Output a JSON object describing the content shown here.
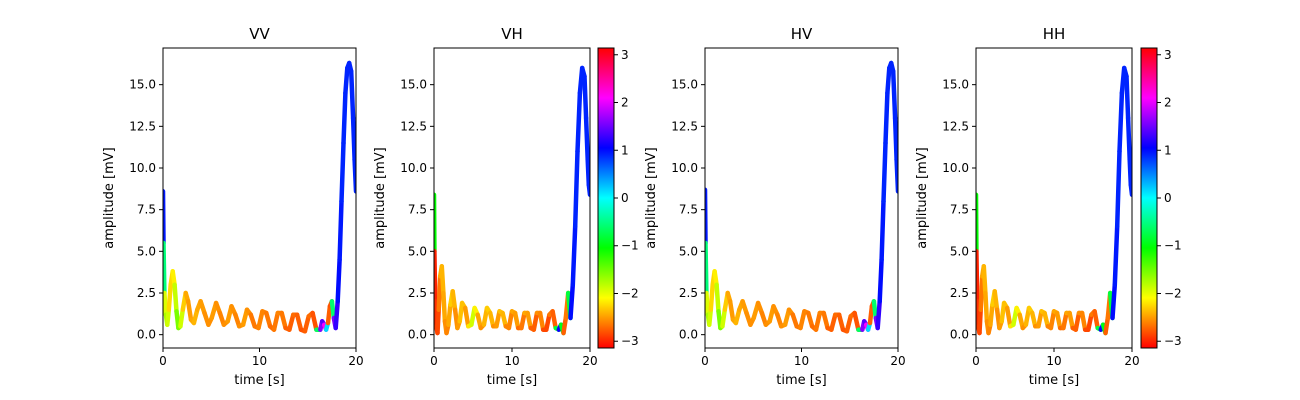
{
  "chart_data": [
    {
      "type": "line",
      "title": "VV",
      "xlabel": "time [s]",
      "ylabel": "amplitude [mV]",
      "xlim": [
        0,
        20
      ],
      "ylim": [
        -0.8,
        17.2
      ],
      "xticks": [
        "0",
        "10",
        "20"
      ],
      "yticks": [
        "0.0",
        "2.5",
        "5.0",
        "7.5",
        "10.0",
        "12.5",
        "15.0"
      ],
      "colorbar": false,
      "series": [
        {
          "x": [
            0.0,
            0.05,
            0.15,
            0.3,
            0.45,
            0.6,
            0.8,
            1.0,
            1.2,
            1.4,
            1.6,
            1.8,
            2.05,
            2.35,
            2.6,
            2.9,
            3.2,
            3.55,
            3.9,
            4.3,
            4.7,
            5.05,
            5.5,
            5.9,
            6.3,
            6.7,
            7.1,
            7.5,
            7.9,
            8.3,
            8.7,
            9.1,
            9.5,
            9.9,
            10.3,
            10.7,
            11.1,
            11.5,
            11.9,
            12.3,
            12.7,
            13.1,
            13.5,
            13.9,
            14.3,
            14.7,
            15.1,
            15.5,
            15.9,
            16.3,
            16.5,
            16.7,
            16.9,
            17.1,
            17.3,
            17.5,
            17.7,
            17.9,
            18.1,
            18.3,
            18.5,
            18.7,
            18.9,
            19.1,
            19.3,
            19.5,
            19.7,
            19.85,
            20.0
          ],
          "y": [
            8.6,
            5.5,
            2.5,
            1.2,
            0.6,
            1.5,
            3.0,
            3.8,
            3.0,
            1.4,
            0.4,
            0.5,
            1.5,
            2.5,
            2.0,
            0.9,
            0.7,
            1.5,
            2.0,
            1.3,
            0.6,
            1.0,
            1.9,
            1.3,
            0.6,
            0.8,
            1.7,
            1.2,
            0.5,
            0.6,
            1.5,
            1.2,
            0.5,
            0.4,
            1.4,
            1.3,
            0.5,
            0.3,
            1.3,
            1.3,
            0.4,
            0.3,
            1.2,
            1.2,
            0.3,
            0.2,
            1.1,
            1.3,
            0.3,
            0.3,
            0.8,
            0.6,
            0.3,
            0.7,
            1.7,
            2.0,
            1.0,
            0.4,
            2.0,
            4.5,
            8.0,
            11.5,
            14.5,
            16.0,
            16.3,
            15.8,
            13.0,
            10.5,
            8.6
          ],
          "phase": [
            1.0,
            0.9,
            -2.0,
            -1.9,
            -1.6,
            -2.2,
            -2.3,
            -2.2,
            -2.1,
            -1.6,
            -1.5,
            -1.6,
            -2.2,
            -2.4,
            -2.5,
            -2.5,
            -2.4,
            -2.4,
            -2.5,
            -2.5,
            -2.6,
            -2.5,
            -2.5,
            -2.6,
            -2.6,
            -2.5,
            -2.5,
            -2.6,
            -2.6,
            -2.5,
            -2.5,
            -2.6,
            -2.7,
            -2.6,
            -2.6,
            -2.6,
            -2.7,
            -2.7,
            -2.6,
            -2.6,
            -2.7,
            -2.8,
            -2.7,
            -2.7,
            -2.8,
            -2.8,
            -2.7,
            -2.7,
            -2.9,
            1.6,
            1.6,
            1.2,
            3.0,
            -2.7,
            -2.8,
            -2.8,
            1.6,
            1.5,
            1.0,
            1.0,
            0.9,
            0.9,
            0.9,
            0.9,
            0.9,
            0.9,
            0.9,
            0.9,
            0.9
          ]
        }
      ]
    },
    {
      "type": "line",
      "title": "VH",
      "xlabel": "time [s]",
      "ylabel": "amplitude [mV]",
      "xlim": [
        0,
        20
      ],
      "ylim": [
        -0.8,
        17.2
      ],
      "xticks": [
        "0",
        "10",
        "20"
      ],
      "yticks": [
        "0.0",
        "2.5",
        "5.0",
        "7.5",
        "10.0",
        "12.5",
        "15.0"
      ],
      "colorbar": true,
      "series": [
        {
          "x": [
            0.0,
            0.05,
            0.15,
            0.3,
            0.45,
            0.6,
            0.8,
            1.0,
            1.2,
            1.4,
            1.6,
            1.85,
            2.1,
            2.4,
            2.7,
            3.0,
            3.3,
            3.6,
            4.0,
            4.4,
            4.8,
            5.2,
            5.6,
            6.0,
            6.4,
            6.8,
            7.2,
            7.6,
            8.0,
            8.4,
            8.8,
            9.2,
            9.6,
            10.0,
            10.4,
            10.8,
            11.2,
            11.6,
            12.0,
            12.4,
            12.8,
            13.2,
            13.6,
            14.0,
            14.4,
            14.8,
            15.2,
            15.6,
            16.0,
            16.3,
            16.6,
            16.9,
            17.2,
            17.5,
            17.8,
            18.1,
            18.4,
            18.7,
            19.0,
            19.3,
            19.5,
            19.7,
            19.85,
            20.0
          ],
          "y": [
            8.4,
            5.0,
            2.0,
            0.5,
            0.1,
            1.5,
            3.5,
            4.1,
            2.5,
            0.8,
            0.1,
            0.6,
            1.8,
            2.6,
            1.5,
            0.4,
            0.8,
            1.9,
            1.6,
            0.5,
            0.6,
            1.6,
            1.2,
            0.4,
            0.6,
            1.6,
            1.3,
            0.5,
            0.5,
            1.4,
            1.3,
            0.5,
            0.4,
            1.4,
            1.3,
            0.4,
            0.4,
            1.3,
            1.3,
            0.4,
            0.3,
            1.3,
            1.3,
            0.3,
            0.3,
            1.2,
            1.4,
            0.4,
            0.3,
            0.6,
            0.1,
            1.0,
            2.5,
            1.0,
            3.0,
            6.5,
            11.0,
            14.5,
            16.0,
            15.5,
            13.0,
            10.5,
            9.0,
            8.4
          ],
          "phase": [
            0.9,
            -3.0,
            -3.0,
            -2.9,
            -2.9,
            -2.8,
            -2.5,
            -2.4,
            -2.4,
            -2.5,
            -2.6,
            -2.6,
            -2.3,
            -2.3,
            -2.5,
            -2.6,
            -2.4,
            -2.3,
            -2.4,
            -2.6,
            -1.8,
            -2.0,
            -2.3,
            -2.6,
            -2.5,
            -2.3,
            -2.3,
            -2.5,
            -2.6,
            -2.4,
            -2.3,
            -2.5,
            -2.7,
            -2.5,
            -2.4,
            -2.6,
            -2.8,
            -2.5,
            -2.4,
            -2.6,
            -2.9,
            -2.6,
            -2.5,
            -2.7,
            -3.0,
            -2.7,
            -2.6,
            -2.9,
            1.3,
            0.9,
            -2.8,
            -2.7,
            -2.6,
            1.0,
            1.0,
            0.9,
            0.9,
            0.9,
            0.9,
            0.9,
            0.9,
            0.9,
            0.9,
            0.9
          ]
        }
      ]
    },
    {
      "type": "line",
      "title": "HV",
      "xlabel": "time [s]",
      "ylabel": "amplitude [mV]",
      "xlim": [
        0,
        20
      ],
      "ylim": [
        -0.8,
        17.2
      ],
      "xticks": [
        "0",
        "10",
        "20"
      ],
      "yticks": [
        "0.0",
        "2.5",
        "5.0",
        "7.5",
        "10.0",
        "12.5",
        "15.0"
      ],
      "colorbar": false,
      "series": [
        {
          "x": [
            0.0,
            0.05,
            0.15,
            0.3,
            0.45,
            0.6,
            0.8,
            1.0,
            1.2,
            1.4,
            1.6,
            1.8,
            2.05,
            2.35,
            2.6,
            2.9,
            3.2,
            3.55,
            3.9,
            4.3,
            4.7,
            5.05,
            5.5,
            5.9,
            6.3,
            6.7,
            7.1,
            7.5,
            7.9,
            8.3,
            8.7,
            9.1,
            9.5,
            9.9,
            10.3,
            10.7,
            11.1,
            11.5,
            11.9,
            12.3,
            12.7,
            13.1,
            13.5,
            13.9,
            14.3,
            14.7,
            15.1,
            15.5,
            15.9,
            16.3,
            16.5,
            16.7,
            16.9,
            17.1,
            17.3,
            17.5,
            17.7,
            17.9,
            18.1,
            18.3,
            18.5,
            18.7,
            18.9,
            19.1,
            19.3,
            19.5,
            19.7,
            19.85,
            20.0
          ],
          "y": [
            8.7,
            5.5,
            2.5,
            1.2,
            0.6,
            1.5,
            3.0,
            3.8,
            3.0,
            1.4,
            0.4,
            0.5,
            1.5,
            2.5,
            2.0,
            0.9,
            0.7,
            1.5,
            2.0,
            1.3,
            0.6,
            1.0,
            1.9,
            1.3,
            0.6,
            0.8,
            1.7,
            1.2,
            0.5,
            0.6,
            1.5,
            1.2,
            0.5,
            0.4,
            1.4,
            1.3,
            0.5,
            0.3,
            1.3,
            1.3,
            0.4,
            0.3,
            1.2,
            1.2,
            0.3,
            0.2,
            1.1,
            1.3,
            0.3,
            0.3,
            0.8,
            0.6,
            0.3,
            0.7,
            1.7,
            2.0,
            1.0,
            0.4,
            2.0,
            4.5,
            8.0,
            11.5,
            14.5,
            16.0,
            16.3,
            15.8,
            13.0,
            10.5,
            8.6
          ],
          "phase": [
            1.0,
            0.9,
            -2.0,
            -1.9,
            -1.6,
            -2.2,
            -2.3,
            -2.2,
            -2.1,
            -1.6,
            -1.5,
            -1.6,
            -2.2,
            -2.4,
            -2.5,
            -2.5,
            -2.4,
            -2.4,
            -2.5,
            -2.5,
            -2.6,
            -2.5,
            -2.5,
            -2.6,
            -2.6,
            -2.5,
            -2.5,
            -2.6,
            -2.6,
            -2.5,
            -2.5,
            -2.6,
            -2.7,
            -2.6,
            -2.6,
            -2.6,
            -2.7,
            -2.7,
            -2.6,
            -2.6,
            -2.7,
            -2.8,
            -2.7,
            -2.7,
            -2.8,
            -2.8,
            -2.7,
            -2.7,
            -2.9,
            1.6,
            1.6,
            1.2,
            3.0,
            -2.7,
            -2.8,
            -2.8,
            1.6,
            1.5,
            1.0,
            1.0,
            0.9,
            0.9,
            0.9,
            0.9,
            0.9,
            0.9,
            0.9,
            0.9,
            0.9
          ]
        }
      ]
    },
    {
      "type": "line",
      "title": "HH",
      "xlabel": "time [s]",
      "ylabel": "amplitude [mV]",
      "xlim": [
        0,
        20
      ],
      "ylim": [
        -0.8,
        17.2
      ],
      "xticks": [
        "0",
        "10",
        "20"
      ],
      "yticks": [
        "0.0",
        "2.5",
        "5.0",
        "7.5",
        "10.0",
        "12.5",
        "15.0"
      ],
      "colorbar": true,
      "series": [
        {
          "x": [
            0.0,
            0.05,
            0.15,
            0.3,
            0.45,
            0.6,
            0.8,
            1.0,
            1.2,
            1.4,
            1.6,
            1.85,
            2.1,
            2.4,
            2.7,
            3.0,
            3.3,
            3.6,
            4.0,
            4.4,
            4.8,
            5.2,
            5.6,
            6.0,
            6.4,
            6.8,
            7.2,
            7.6,
            8.0,
            8.4,
            8.8,
            9.2,
            9.6,
            10.0,
            10.4,
            10.8,
            11.2,
            11.6,
            12.0,
            12.4,
            12.8,
            13.2,
            13.6,
            14.0,
            14.4,
            14.8,
            15.2,
            15.6,
            16.0,
            16.3,
            16.6,
            16.9,
            17.2,
            17.5,
            17.8,
            18.1,
            18.4,
            18.7,
            19.0,
            19.3,
            19.5,
            19.7,
            19.85,
            20.0
          ],
          "y": [
            8.4,
            5.0,
            2.0,
            0.5,
            0.1,
            1.5,
            3.5,
            4.1,
            2.5,
            0.8,
            0.1,
            0.6,
            1.8,
            2.6,
            1.5,
            0.4,
            0.8,
            1.9,
            1.6,
            0.5,
            0.6,
            1.6,
            1.2,
            0.4,
            0.6,
            1.6,
            1.3,
            0.5,
            0.5,
            1.4,
            1.3,
            0.5,
            0.4,
            1.4,
            1.3,
            0.4,
            0.4,
            1.3,
            1.3,
            0.4,
            0.3,
            1.3,
            1.3,
            0.3,
            0.3,
            1.2,
            1.4,
            0.4,
            0.3,
            0.6,
            0.1,
            1.0,
            2.5,
            1.0,
            3.0,
            6.5,
            11.0,
            14.5,
            16.0,
            15.5,
            13.0,
            10.5,
            9.0,
            8.4
          ],
          "phase": [
            0.9,
            -3.0,
            -3.0,
            -2.9,
            -2.9,
            -2.8,
            -2.5,
            -2.4,
            -2.4,
            -2.5,
            -2.6,
            -2.6,
            -2.3,
            -2.3,
            -2.5,
            -2.6,
            -2.4,
            -2.3,
            -2.4,
            -2.6,
            -1.8,
            -2.0,
            -2.3,
            -2.6,
            -2.5,
            -2.3,
            -2.3,
            -2.5,
            -2.6,
            -2.4,
            -2.3,
            -2.5,
            -2.7,
            -2.5,
            -2.4,
            -2.6,
            -2.8,
            -2.5,
            -2.4,
            -2.6,
            -2.9,
            -2.6,
            -2.5,
            -2.7,
            -3.0,
            -2.7,
            -2.6,
            -2.9,
            1.3,
            0.9,
            -2.8,
            -2.7,
            -2.6,
            1.0,
            1.0,
            0.9,
            0.9,
            0.9,
            0.9,
            0.9,
            0.9,
            0.9,
            0.9,
            0.9
          ]
        }
      ]
    }
  ],
  "colorbar": {
    "colormap": "hsv",
    "range": [
      -3.1416,
      3.1416
    ],
    "ticks": [
      "3",
      "2",
      "1",
      "0",
      "−1",
      "−2",
      "−3"
    ],
    "tick_values": [
      3,
      2,
      1,
      0,
      -1,
      -2,
      -3
    ]
  }
}
